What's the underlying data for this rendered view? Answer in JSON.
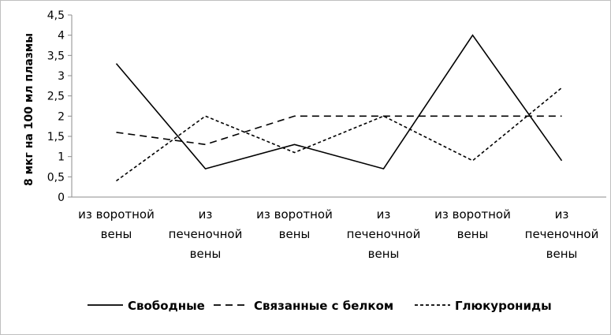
{
  "chart_data": {
    "type": "line",
    "title": "",
    "xlabel": "",
    "ylabel": "8 мкг на 100 мл плазмы",
    "ylim": [
      0,
      4.5
    ],
    "y_ticks": [
      "0",
      "0,5",
      "1",
      "1,5",
      "2",
      "2,5",
      "3",
      "3,5",
      "4",
      "4,5"
    ],
    "categories": [
      [
        "из воротной",
        "вены"
      ],
      [
        "из",
        "печеночной",
        "вены"
      ],
      [
        "из воротной",
        "вены"
      ],
      [
        "из",
        "печеночной",
        "вены"
      ],
      [
        "из воротной",
        "вены"
      ],
      [
        "из",
        "печеночной",
        "вены"
      ]
    ],
    "grid": false,
    "legend_position": "bottom",
    "series": [
      {
        "name": "Свободные",
        "style": "solid",
        "values": [
          3.3,
          0.7,
          1.3,
          0.7,
          4.0,
          0.9
        ]
      },
      {
        "name": "Связанные с белком",
        "style": "dashed",
        "values": [
          1.6,
          1.3,
          2.0,
          2.0,
          2.0,
          2.0
        ]
      },
      {
        "name": "Глюкурониды",
        "style": "dotted",
        "values": [
          0.4,
          2.0,
          1.1,
          2.0,
          0.9,
          2.7
        ]
      }
    ]
  }
}
